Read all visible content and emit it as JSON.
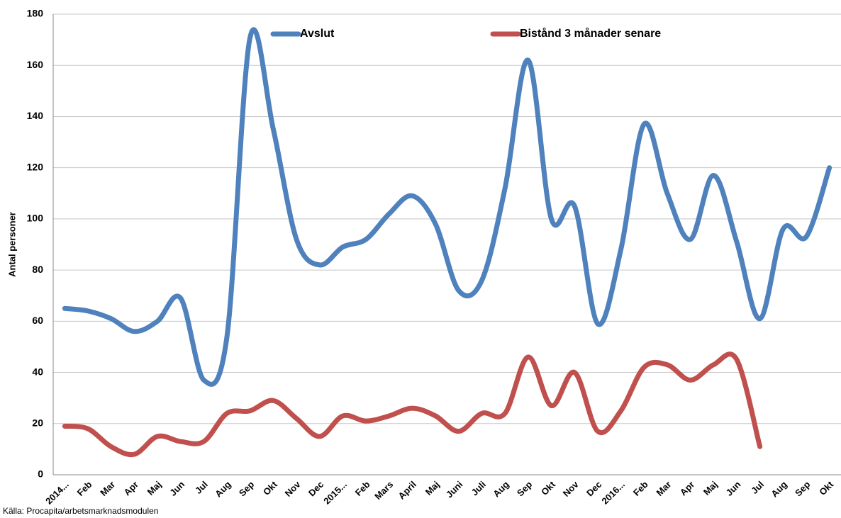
{
  "chart_data": {
    "type": "line",
    "y_label": "Antal personer",
    "source": "Källa: Procapita/arbetsmarknadsmodulen",
    "categories": [
      "2014...",
      "Feb",
      "Mar",
      "Apr",
      "Maj",
      "Jun",
      "Jul",
      "Aug",
      "Sep",
      "Okt",
      "Nov",
      "Dec",
      "2015...",
      "Feb",
      "Mars",
      "April",
      "Maj",
      "Juni",
      "Juli",
      "Aug",
      "Sep",
      "Okt",
      "Nov",
      "Dec",
      "2016...",
      "Feb",
      "Mar",
      "Apr",
      "Maj",
      "Jun",
      "Jul",
      "Aug",
      "Sep",
      "Okt"
    ],
    "series": [
      {
        "name": "Avslut",
        "color": "#4f81bd",
        "values": [
          65,
          64,
          61,
          56,
          60,
          69,
          37,
          54,
          171,
          135,
          92,
          82,
          89,
          92,
          102,
          109,
          98,
          72,
          76,
          112,
          162,
          100,
          105,
          59,
          88,
          137,
          110,
          92,
          117,
          91,
          61,
          96,
          93,
          120
        ]
      },
      {
        "name": "Bistånd 3 månader senare",
        "color": "#c0504d",
        "values": [
          19,
          18,
          11,
          8,
          15,
          13,
          13,
          24,
          25,
          29,
          22,
          15,
          23,
          21,
          23,
          26,
          23,
          17,
          24,
          24,
          46,
          27,
          40,
          17,
          25,
          42,
          43,
          37,
          43,
          45,
          11,
          null,
          null,
          null
        ]
      }
    ],
    "ylim": [
      0,
      180
    ],
    "yticks": [
      0,
      20,
      40,
      60,
      80,
      100,
      120,
      140,
      160,
      180
    ],
    "grid": true,
    "legend": "top"
  }
}
